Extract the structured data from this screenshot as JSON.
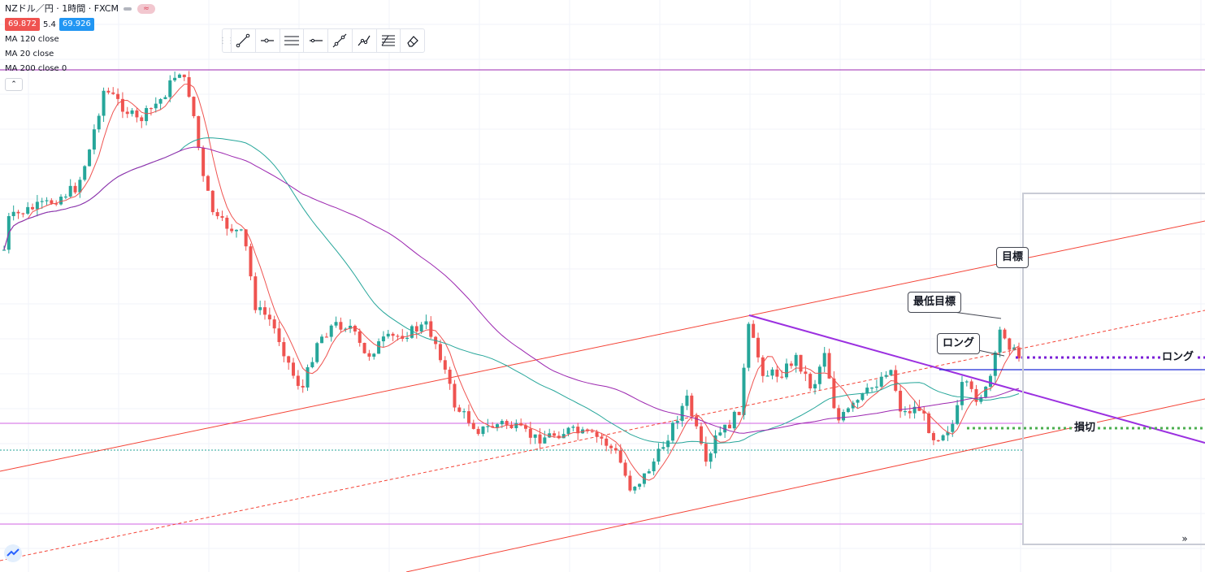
{
  "header": {
    "symbol_title": "NZドル／円 · 1時間 · FXCM",
    "bid": "69.872",
    "spread": "5.4",
    "ask": "69.926",
    "status_icon": "≈"
  },
  "indicators": [
    {
      "label": "MA 120 close"
    },
    {
      "label": "MA 20 close"
    },
    {
      "label": "MA 200 close 0"
    }
  ],
  "toolbar": {
    "tools": [
      "trend-line-icon",
      "horizontal-ray-icon",
      "parallel-channel-icon",
      "horizontal-line-icon",
      "extended-line-icon",
      "path-icon",
      "fib-icon",
      "eraser-icon"
    ]
  },
  "annotations": {
    "target": "目標",
    "min_target": "最低目標",
    "long_callout": "ロング",
    "long_line": "ロング",
    "stop_loss": "損切"
  },
  "colors": {
    "up": "#26a69a",
    "down": "#ef5350",
    "ma20": "#ef5350",
    "ma120": "#26a69a",
    "ma200": "#9c27b0",
    "channel": "#f44336",
    "resistance": "#9b30e0",
    "horizontal": "#d163e3",
    "entry": "#1e2bd6",
    "grid": "#f0f3fa"
  },
  "chart_data": {
    "type": "candlestick",
    "series": [
      {
        "name": "MA 120 close",
        "kind": "moving-average"
      },
      {
        "name": "MA 20 close",
        "kind": "moving-average"
      },
      {
        "name": "MA 200 close 0",
        "kind": "moving-average"
      }
    ],
    "candle_count": 215,
    "price_range": "not printed (price axis hidden)",
    "drawings": [
      "ascending channel",
      "descending resistance line",
      "horizontal support/resistance levels",
      "entry, target and stop levels",
      "projection box"
    ]
  }
}
